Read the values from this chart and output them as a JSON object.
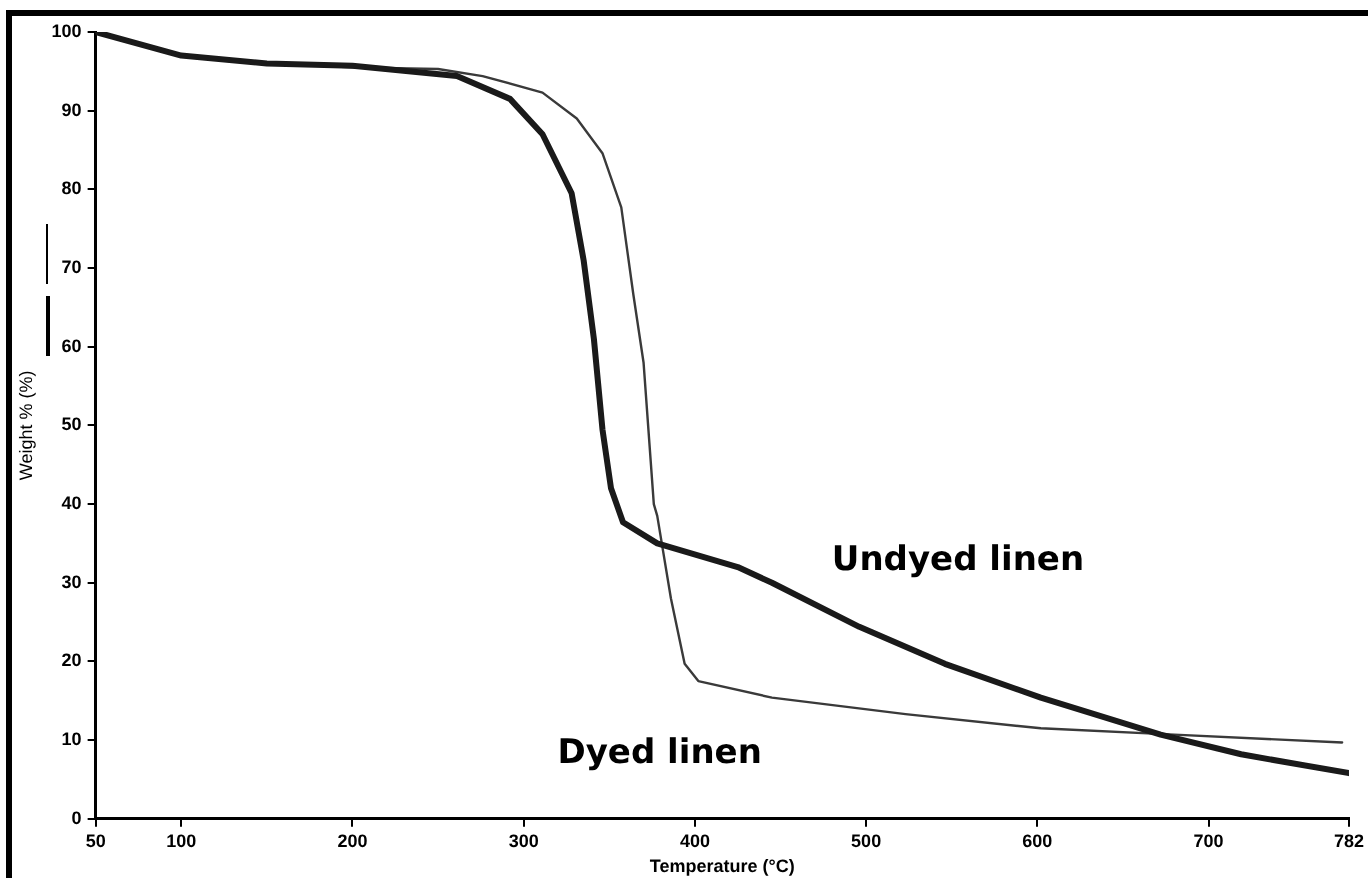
{
  "chart_data": {
    "type": "line",
    "xlabel": "Temperature (°C)",
    "ylabel": "Weight % (%)",
    "xlim": [
      50,
      782
    ],
    "xticks": [
      50,
      100,
      200,
      300,
      400,
      500,
      600,
      700,
      782
    ],
    "ylim": [
      0,
      100
    ],
    "yticks": [
      0,
      10,
      20,
      30,
      40,
      50,
      60,
      70,
      80,
      90,
      100
    ],
    "grid": false,
    "legend": false,
    "marker": "none",
    "line_style": "solid",
    "series": [
      {
        "name": "Undyed linen",
        "color": "#1a1a1a",
        "x": [
          50,
          100,
          150,
          200,
          261,
          292,
          311,
          328,
          335,
          341,
          346,
          351,
          358,
          378,
          425,
          445,
          496,
          546,
          602,
          672,
          719,
          782
        ],
        "values": [
          100,
          97,
          96,
          95.7,
          94.4,
          91.5,
          87,
          79.5,
          71,
          61,
          49.5,
          42,
          37.7,
          35,
          32,
          30,
          24.4,
          19.7,
          15.4,
          10.7,
          8.2,
          5.8
        ]
      },
      {
        "name": "Dyed linen",
        "color": "#3a3a3a",
        "x": [
          50,
          100,
          150,
          200,
          250,
          276,
          311,
          331,
          346,
          357,
          364,
          370,
          376,
          378,
          386,
          394,
          402,
          445,
          523,
          602,
          680,
          778
        ],
        "values": [
          100,
          97,
          96,
          95.5,
          95.3,
          94.4,
          92.3,
          89,
          84.6,
          77.7,
          66.7,
          58,
          40,
          38.5,
          28,
          19.7,
          17.5,
          15.4,
          13.3,
          11.5,
          10.7,
          9.7
        ]
      }
    ]
  }
}
